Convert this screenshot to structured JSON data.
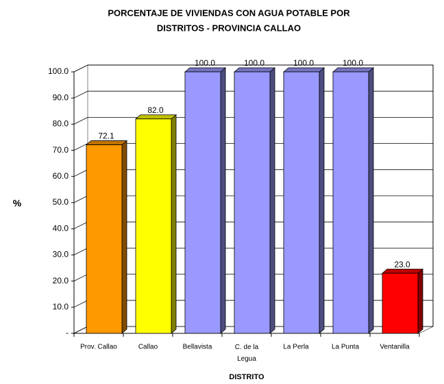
{
  "chart_data": {
    "type": "bar3d",
    "title": [
      "PORCENTAJE DE VIVIENDAS CON AGUA POTABLE POR",
      "DISTRITOS  - PROVINCIA CALLAO"
    ],
    "xlabel": "DISTRITO",
    "ylabel": "%",
    "categories": [
      "Prov. Callao",
      "Callao",
      "Bellavista",
      "C. de la Legua",
      "La Perla",
      "La Punta",
      "Ventanilla"
    ],
    "values": [
      72.1,
      82.0,
      100.0,
      100.0,
      100.0,
      100.0,
      23.0
    ],
    "value_labels": [
      "72.1",
      "82.0",
      "100.0",
      "100.0",
      "100.0",
      "100.0",
      "23.0"
    ],
    "colors": [
      "#ff9900",
      "#ffff00",
      "#9999ff",
      "#9999ff",
      "#9999ff",
      "#9999ff",
      "#ff0000"
    ],
    "ylim": [
      0,
      100
    ],
    "yticks": [
      {
        "value": 0,
        "label": "-"
      },
      {
        "value": 10,
        "label": "10.0"
      },
      {
        "value": 20,
        "label": "20.0"
      },
      {
        "value": 30,
        "label": "30.0"
      },
      {
        "value": 40,
        "label": "40.0"
      },
      {
        "value": 50,
        "label": "50.0"
      },
      {
        "value": 60,
        "label": "60.0"
      },
      {
        "value": 70,
        "label": "70.0"
      },
      {
        "value": 80,
        "label": "80.0"
      },
      {
        "value": 90,
        "label": "90.0"
      },
      {
        "value": 100,
        "label": "100.0"
      }
    ],
    "grid": true
  }
}
